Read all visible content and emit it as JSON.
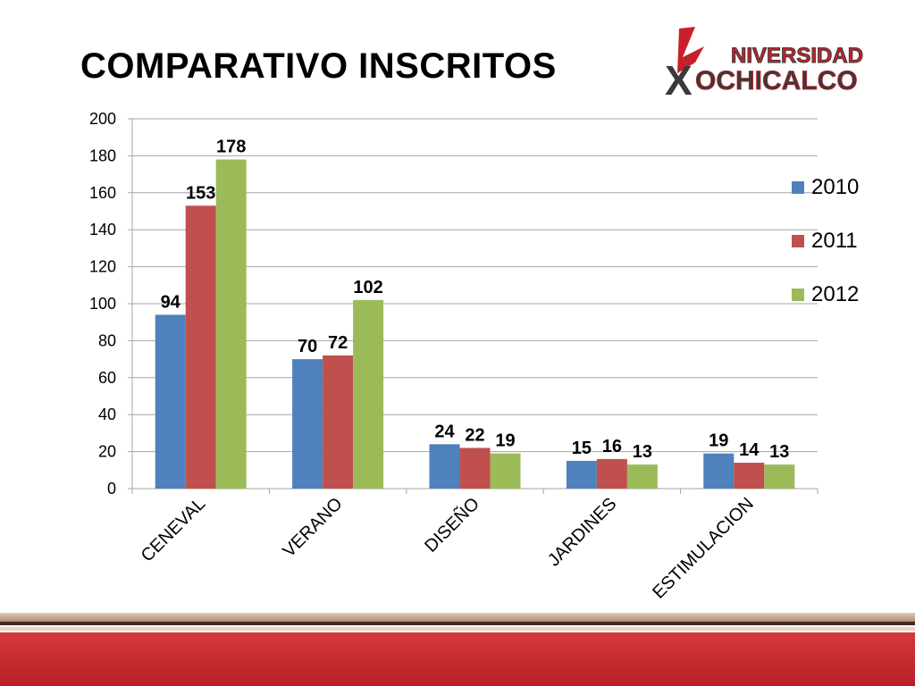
{
  "slide": {
    "title": "COMPARATIVO INSCRITOS"
  },
  "logo": {
    "line1": "NIVERSIDAD",
    "line2_letter": "X",
    "line2_rest": "OCHICALCO",
    "red": "#c8202a",
    "dark": "#3a3a3a"
  },
  "colors": {
    "grid": "#a6a6a6",
    "footer_red": "#c8232b",
    "footer_tan": "#c8a48a",
    "footer_dark": "#3d2a22"
  },
  "chart_data": {
    "type": "bar",
    "categories": [
      "CENEVAL",
      "VERANO",
      "DISEÑO",
      "JARDINES",
      "ESTIMULACION"
    ],
    "series": [
      {
        "name": "2010",
        "color": "#4f81bd",
        "values": [
          94,
          70,
          24,
          15,
          19
        ]
      },
      {
        "name": "2011",
        "color": "#c0504d",
        "values": [
          153,
          72,
          22,
          16,
          14
        ]
      },
      {
        "name": "2012",
        "color": "#9bbb59",
        "values": [
          178,
          102,
          19,
          13,
          13
        ]
      }
    ],
    "title": "",
    "xlabel": "",
    "ylabel": "",
    "ylim": [
      0,
      200
    ],
    "yticks": [
      0,
      20,
      40,
      60,
      80,
      100,
      120,
      140,
      160,
      180,
      200
    ],
    "grid": true,
    "legend_position": "right"
  }
}
